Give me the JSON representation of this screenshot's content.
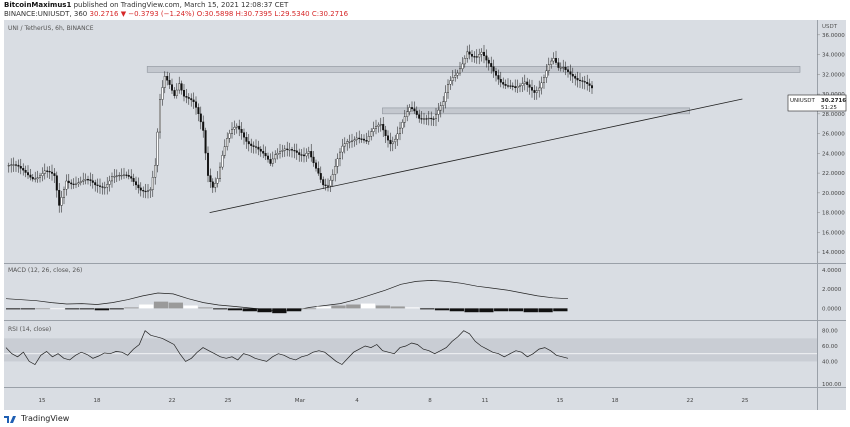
{
  "header": {
    "author": "BitcoinMaximus1",
    "published": "published on TradingView.com, March 15, 2021 12:08:37 CET",
    "symbol_line": "BINANCE:UNIUSDT, 360",
    "open": "30.2716",
    "change": "▼ −0.3793 (−1.24%)",
    "ohlc": "O:30.5898 H:30.7395 L:29.5340 C:30.2716"
  },
  "footer": {
    "brand": "TradingView"
  },
  "chart_data": [
    {
      "type": "candlestick",
      "title": "UNI / TetherUS, 6h, BINANCE",
      "quote_currency": "USDT",
      "ylim": [
        13.0,
        37.5
      ],
      "y_ticks": [
        "14.0000",
        "16.0000",
        "18.0000",
        "20.0000",
        "22.0000",
        "24.0000",
        "26.0000",
        "28.0000",
        "30.0000",
        "32.0000",
        "34.0000",
        "36.0000"
      ],
      "x_ticks": [
        "15",
        "18",
        "22",
        "25",
        "Mar",
        "4",
        "8",
        "11",
        "15",
        "18",
        "22",
        "25"
      ],
      "last_price": "30.2716",
      "countdown": "51:25",
      "price_tag_symbol": "UNIUSDT",
      "close_path": [
        [
          0,
          22.8
        ],
        [
          5,
          22.1
        ],
        [
          10,
          21.8
        ],
        [
          15,
          22.2
        ],
        [
          19,
          21.3
        ],
        [
          21,
          18.5
        ],
        [
          24,
          21.5
        ],
        [
          28,
          21.2
        ],
        [
          32,
          21.0
        ],
        [
          36,
          20.6
        ],
        [
          40,
          21.0
        ],
        [
          43,
          21.9
        ],
        [
          47,
          21.4
        ],
        [
          51,
          21.3
        ],
        [
          55,
          20.7
        ],
        [
          59,
          20.4
        ],
        [
          61,
          22.5
        ],
        [
          63,
          29.0
        ],
        [
          65,
          31.5
        ],
        [
          67,
          31.0
        ],
        [
          69,
          30.2
        ],
        [
          71,
          31.5
        ],
        [
          73,
          30.0
        ],
        [
          75,
          29.4
        ],
        [
          77,
          28.8
        ],
        [
          79,
          27.6
        ],
        [
          81,
          26.2
        ],
        [
          83,
          22.0
        ],
        [
          85,
          21.0
        ],
        [
          87,
          21.8
        ],
        [
          89,
          23.8
        ],
        [
          91,
          25.2
        ],
        [
          93,
          26.0
        ],
        [
          95,
          26.5
        ],
        [
          97,
          26.2
        ],
        [
          99,
          25.6
        ],
        [
          101,
          25.2
        ],
        [
          103,
          24.8
        ],
        [
          105,
          24.0
        ],
        [
          107,
          23.3
        ],
        [
          109,
          22.6
        ],
        [
          111,
          23.8
        ],
        [
          113,
          24.5
        ],
        [
          115,
          24.9
        ],
        [
          117,
          24.7
        ],
        [
          119,
          24.2
        ],
        [
          121,
          23.5
        ],
        [
          123,
          23.3
        ],
        [
          125,
          24.0
        ],
        [
          127,
          23.2
        ],
        [
          129,
          22.4
        ],
        [
          131,
          21.2
        ],
        [
          133,
          20.8
        ],
        [
          135,
          21.6
        ],
        [
          137,
          23.0
        ],
        [
          139,
          24.4
        ],
        [
          141,
          25.2
        ],
        [
          143,
          25.6
        ],
        [
          145,
          26.0
        ],
        [
          147,
          25.7
        ],
        [
          149,
          25.1
        ],
        [
          151,
          25.8
        ],
        [
          153,
          26.3
        ],
        [
          155,
          26.8
        ],
        [
          157,
          26.0
        ],
        [
          159,
          25.4
        ],
        [
          161,
          25.8
        ],
        [
          163,
          26.6
        ],
        [
          165,
          27.4
        ],
        [
          167,
          28.2
        ],
        [
          169,
          28.0
        ],
        [
          171,
          27.6
        ],
        [
          173,
          27.9
        ],
        [
          175,
          28.0
        ],
        [
          177,
          27.7
        ],
        [
          179,
          28.2
        ],
        [
          181,
          28.8
        ],
        [
          183,
          30.6
        ],
        [
          185,
          31.6
        ],
        [
          187,
          32.4
        ],
        [
          189,
          33.5
        ],
        [
          191,
          34.6
        ],
        [
          193,
          33.8
        ],
        [
          195,
          33.4
        ],
        [
          197,
          33.8
        ],
        [
          199,
          33.2
        ],
        [
          201,
          32.9
        ],
        [
          203,
          32.3
        ],
        [
          205,
          31.6
        ],
        [
          207,
          31.0
        ],
        [
          209,
          30.6
        ],
        [
          211,
          30.2
        ],
        [
          213,
          30.5
        ],
        [
          215,
          31.2
        ],
        [
          217,
          31.0
        ],
        [
          219,
          30.6
        ],
        [
          221,
          30.9
        ],
        [
          223,
          31.6
        ],
        [
          225,
          32.6
        ],
        [
          227,
          33.2
        ],
        [
          229,
          32.5
        ],
        [
          231,
          32.9
        ],
        [
          233,
          32.7
        ],
        [
          235,
          32.2
        ],
        [
          237,
          31.5
        ],
        [
          239,
          31.0
        ],
        [
          241,
          30.6
        ],
        [
          243,
          30.3
        ]
      ],
      "horizontal_zones": [
        {
          "from_x": 58,
          "to_x": 330,
          "y_low": 32.2,
          "y_high": 32.8
        },
        {
          "from_x": 156,
          "to_x": 284,
          "y_low": 28.0,
          "y_high": 28.6
        }
      ],
      "trendline": {
        "from": [
          84,
          18.0
        ],
        "to": [
          306,
          29.5
        ]
      }
    },
    {
      "type": "line",
      "title": "MACD (12, 26, close, 26)",
      "ylim": [
        -1.0,
        4.4
      ],
      "y_ticks": [
        "4.0000",
        "2.0000",
        "0.0000"
      ],
      "series": [
        {
          "values": [
            1.0,
            0.9,
            0.8,
            0.6,
            0.45,
            0.5,
            0.4,
            0.6,
            0.9,
            1.3,
            1.6,
            1.5,
            1.0,
            0.6,
            0.35,
            0.2,
            0.05,
            -0.1,
            -0.3,
            -0.2,
            0.1,
            0.3,
            0.5,
            0.9,
            1.4,
            1.9,
            2.5,
            2.8,
            2.9,
            2.8,
            2.6,
            2.3,
            2.1,
            1.9,
            1.6,
            1.3,
            1.1,
            1.0
          ]
        }
      ],
      "histogram": [
        -0.1,
        -0.1,
        0,
        0,
        -0.1,
        -0.1,
        -0.2,
        -0.1,
        0.1,
        0.4,
        0.7,
        0.6,
        0.3,
        0.1,
        -0.1,
        -0.2,
        -0.3,
        -0.4,
        -0.5,
        -0.3,
        0,
        0.2,
        0.3,
        0.4,
        0.5,
        0.3,
        0.2,
        0.1,
        -0.1,
        -0.2,
        -0.3,
        -0.4,
        -0.4,
        -0.3,
        -0.3,
        -0.4,
        -0.4,
        -0.3
      ]
    },
    {
      "type": "line",
      "title": "RSI (14, close)",
      "ylim": [
        8,
        90
      ],
      "y_ticks": [
        "80.00",
        "60.00",
        "40.00",
        "100.00"
      ],
      "band": [
        40,
        70
      ],
      "series": [
        {
          "values": [
            58,
            50,
            46,
            52,
            40,
            36,
            48,
            53,
            46,
            50,
            44,
            42,
            48,
            52,
            49,
            44,
            47,
            51,
            50,
            53,
            52,
            48,
            56,
            62,
            80,
            74,
            72,
            70,
            66,
            62,
            50,
            40,
            44,
            52,
            58,
            54,
            50,
            46,
            44,
            46,
            42,
            50,
            48,
            44,
            42,
            40,
            46,
            50,
            48,
            44,
            42,
            46,
            48,
            52,
            54,
            52,
            46,
            40,
            36,
            44,
            52,
            56,
            60,
            58,
            62,
            54,
            52,
            50,
            58,
            60,
            64,
            62,
            56,
            54,
            50,
            54,
            58,
            66,
            72,
            80,
            76,
            66,
            60,
            56,
            52,
            50,
            46,
            50,
            54,
            52,
            46,
            50,
            56,
            58,
            54,
            48,
            46,
            44
          ]
        }
      ]
    }
  ]
}
